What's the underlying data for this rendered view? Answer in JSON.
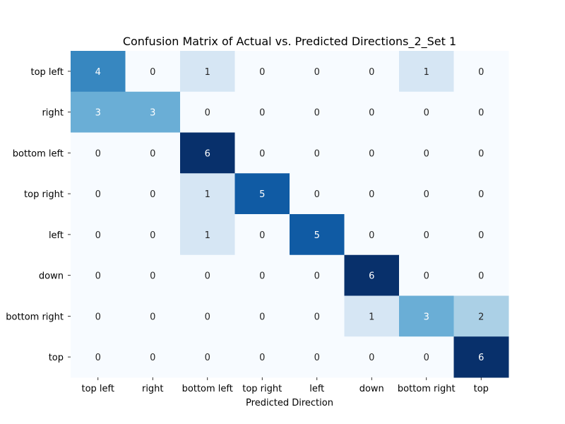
{
  "chart_data": {
    "type": "heatmap",
    "title": "Confusion Matrix of Actual vs. Predicted Directions_2_Set 1",
    "xlabel": "Predicted Direction",
    "ylabel": "",
    "x_categories": [
      "top left",
      "right",
      "bottom left",
      "top right",
      "left",
      "down",
      "bottom right",
      "top"
    ],
    "y_categories": [
      "top left",
      "right",
      "bottom left",
      "top right",
      "left",
      "down",
      "bottom right",
      "top"
    ],
    "values": [
      [
        4,
        0,
        1,
        0,
        0,
        0,
        1,
        0
      ],
      [
        3,
        3,
        0,
        0,
        0,
        0,
        0,
        0
      ],
      [
        0,
        0,
        6,
        0,
        0,
        0,
        0,
        0
      ],
      [
        0,
        0,
        1,
        5,
        0,
        0,
        0,
        0
      ],
      [
        0,
        0,
        1,
        0,
        5,
        0,
        0,
        0
      ],
      [
        0,
        0,
        0,
        0,
        0,
        6,
        0,
        0
      ],
      [
        0,
        0,
        0,
        0,
        0,
        1,
        3,
        2
      ],
      [
        0,
        0,
        0,
        0,
        0,
        0,
        0,
        6
      ]
    ],
    "value_range": [
      0,
      6
    ],
    "colormap": "Blues",
    "colorbar": false,
    "annotations": true,
    "colors": {
      "0": "#f7fbff",
      "1": "#d6e6f4",
      "2": "#abd0e6",
      "3": "#6aaed6",
      "4": "#3787c0",
      "5": "#105ba4",
      "6": "#08306b"
    }
  }
}
